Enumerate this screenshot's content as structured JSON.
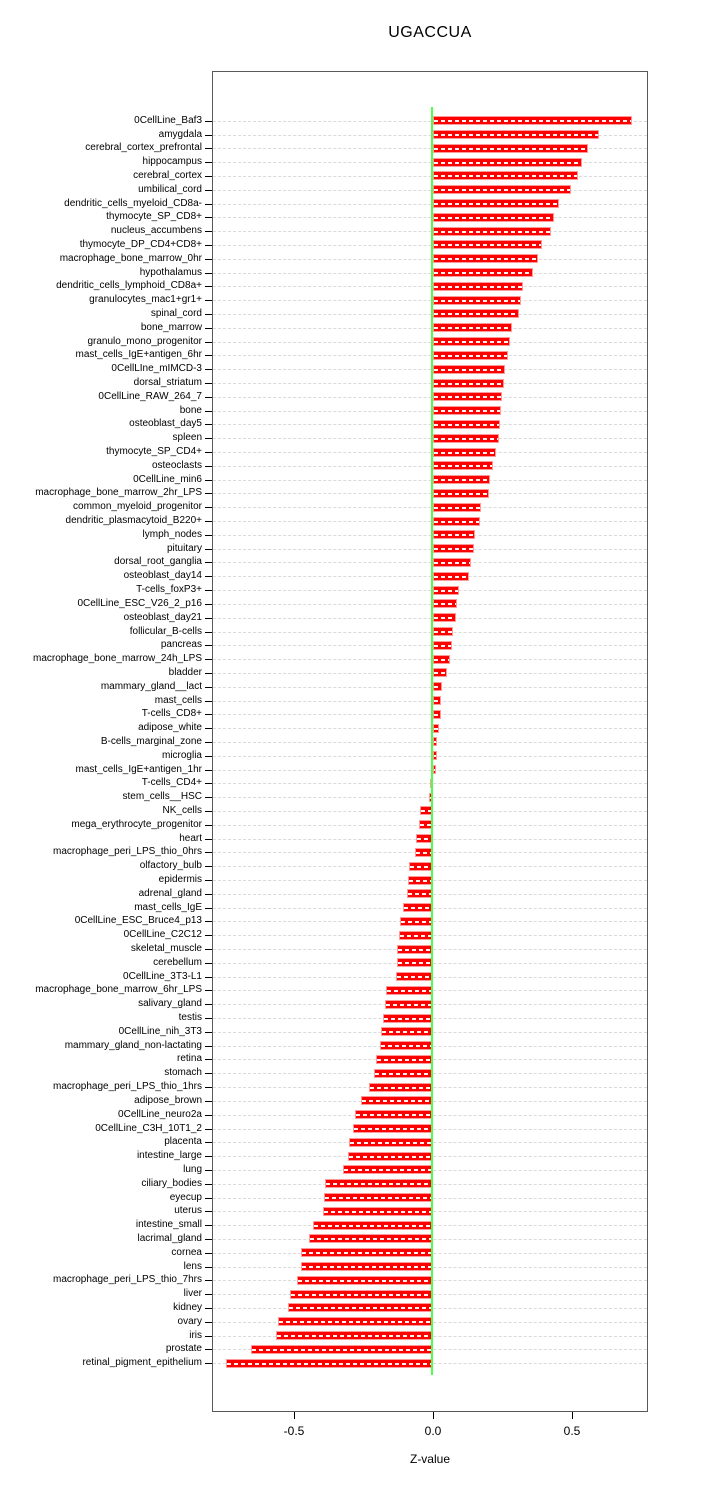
{
  "chart_data": {
    "type": "bar",
    "orientation": "horizontal",
    "title": "UGACCUA",
    "xlabel": "Z-value",
    "ylabel": "",
    "xlim": [
      -0.79,
      0.77
    ],
    "x_ticks": [
      -0.5,
      0.0,
      0.5
    ],
    "x_tick_labels": [
      "-0.5",
      "0.0",
      "0.5"
    ],
    "zero_reference_line": 0.0,
    "grid": true,
    "grid_style": "dashed",
    "bar_color": "#ff0000",
    "zero_line_color": "#4dff4d",
    "categories": [
      "0CellLine_Baf3",
      "amygdala",
      "cerebral_cortex_prefrontal",
      "hippocampus",
      "cerebral_cortex",
      "umbilical_cord",
      "dendritic_cells_myeloid_CD8a-",
      "thymocyte_SP_CD8+",
      "nucleus_accumbens",
      "thymocyte_DP_CD4+CD8+",
      "macrophage_bone_marrow_0hr",
      "hypothalamus",
      "dendritic_cells_lymphoid_CD8a+",
      "granulocytes_mac1+gr1+",
      "spinal_cord",
      "bone_marrow",
      "granulo_mono_progenitor",
      "mast_cells_IgE+antigen_6hr",
      "0CellLIne_mIMCD-3",
      "dorsal_striatum",
      "0CellLine_RAW_264_7",
      "bone",
      "osteoblast_day5",
      "spleen",
      "thymocyte_SP_CD4+",
      "osteoclasts",
      "0CellLine_min6",
      "macrophage_bone_marrow_2hr_LPS",
      "common_myeloid_progenitor",
      "dendritic_plasmacytoid_B220+",
      "lymph_nodes",
      "pituitary",
      "dorsal_root_ganglia",
      "osteoblast_day14",
      "T-cells_foxP3+",
      "0CellLine_ESC_V26_2_p16",
      "osteoblast_day21",
      "follicular_B-cells",
      "pancreas",
      "macrophage_bone_marrow_24h_LPS",
      "bladder",
      "mammary_gland__lact",
      "mast_cells",
      "T-cells_CD8+",
      "adipose_white",
      "B-cells_marginal_zone",
      "microglia",
      "mast_cells_IgE+antigen_1hr",
      "T-cells_CD4+",
      "stem_cells__HSC",
      "NK_cells",
      "mega_erythrocyte_progenitor",
      "heart",
      "macrophage_peri_LPS_thio_0hrs",
      "olfactory_bulb",
      "epidermis",
      "adrenal_gland",
      "mast_cells_IgE",
      "0CellLine_ESC_Bruce4_p13",
      "0CellLine_C2C12",
      "skeletal_muscle",
      "cerebellum",
      "0CellLine_3T3-L1",
      "macrophage_bone_marrow_6hr_LPS",
      "salivary_gland",
      "testis",
      "0CellLine_nih_3T3",
      "mammary_gland_non-lactating",
      "retina",
      "stomach",
      "macrophage_peri_LPS_thio_1hrs",
      "adipose_brown",
      "0CellLine_neuro2a",
      "0CellLine_C3H_10T1_2",
      "placenta",
      "intestine_large",
      "lung",
      "ciliary_bodies",
      "eyecup",
      "uterus",
      "intestine_small",
      "lacrimal_gland",
      "cornea",
      "lens",
      "macrophage_peri_LPS_thio_7hrs",
      "liver",
      "kidney",
      "ovary",
      "iris",
      "prostate",
      "retinal_pigment_epithelium"
    ],
    "values": [
      0.716,
      0.596,
      0.558,
      0.537,
      0.52,
      0.495,
      0.452,
      0.434,
      0.426,
      0.392,
      0.377,
      0.36,
      0.324,
      0.316,
      0.309,
      0.284,
      0.277,
      0.269,
      0.259,
      0.255,
      0.247,
      0.243,
      0.24,
      0.236,
      0.228,
      0.216,
      0.206,
      0.203,
      0.173,
      0.169,
      0.15,
      0.146,
      0.136,
      0.129,
      0.095,
      0.086,
      0.083,
      0.071,
      0.068,
      0.062,
      0.052,
      0.031,
      0.03,
      0.027,
      0.022,
      0.016,
      0.013,
      0.012,
      -0.012,
      -0.016,
      -0.046,
      -0.052,
      -0.06,
      -0.066,
      -0.088,
      -0.09,
      -0.095,
      -0.107,
      -0.12,
      -0.122,
      -0.128,
      -0.128,
      -0.134,
      -0.168,
      -0.174,
      -0.181,
      -0.188,
      -0.192,
      -0.206,
      -0.211,
      -0.231,
      -0.258,
      -0.279,
      -0.289,
      -0.303,
      -0.307,
      -0.324,
      -0.39,
      -0.391,
      -0.395,
      -0.43,
      -0.445,
      -0.476,
      -0.476,
      -0.49,
      -0.514,
      -0.52,
      -0.559,
      -0.565,
      -0.655,
      -0.744
    ]
  }
}
